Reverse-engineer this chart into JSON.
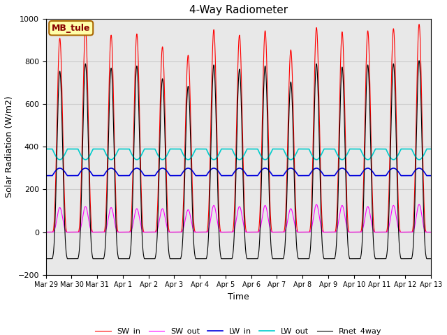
{
  "title": "4-Way Radiometer",
  "xlabel": "Time",
  "ylabel": "Solar Radiation (W/m2)",
  "ylim": [
    -200,
    1000
  ],
  "annotation": "MB_tule",
  "annotation_bbox": {
    "facecolor": "#ffffaa",
    "edgecolor": "#aa6600",
    "boxstyle": "round,pad=0.3"
  },
  "annotation_color": "#880000",
  "colors": {
    "SW_in": "#ff0000",
    "SW_out": "#ff00ff",
    "LW_in": "#0000dd",
    "LW_out": "#00cccc",
    "Rnet_4way": "#000000"
  },
  "xtick_labels": [
    "Mar 29",
    "Mar 30",
    "Mar 31",
    "Apr 1",
    "Apr 2",
    "Apr 3",
    "Apr 4",
    "Apr 5",
    "Apr 6",
    "Apr 7",
    "Apr 8",
    "Apr 9",
    "Apr 10",
    "Apr 11",
    "Apr 12",
    "Apr 13"
  ],
  "grid_color": "#cccccc",
  "background_color": "#e8e8e8",
  "SW_in_peaks": [
    910,
    950,
    925,
    930,
    870,
    830,
    950,
    925,
    945,
    855,
    960,
    940,
    945,
    955,
    975
  ],
  "SW_out_peaks": [
    115,
    120,
    115,
    110,
    110,
    105,
    125,
    120,
    125,
    110,
    130,
    125,
    120,
    125,
    130
  ],
  "LW_in_base": 265,
  "LW_in_day_bump": 35,
  "LW_out_base": 390,
  "LW_out_day_dip": 50,
  "Rnet_night": -110
}
